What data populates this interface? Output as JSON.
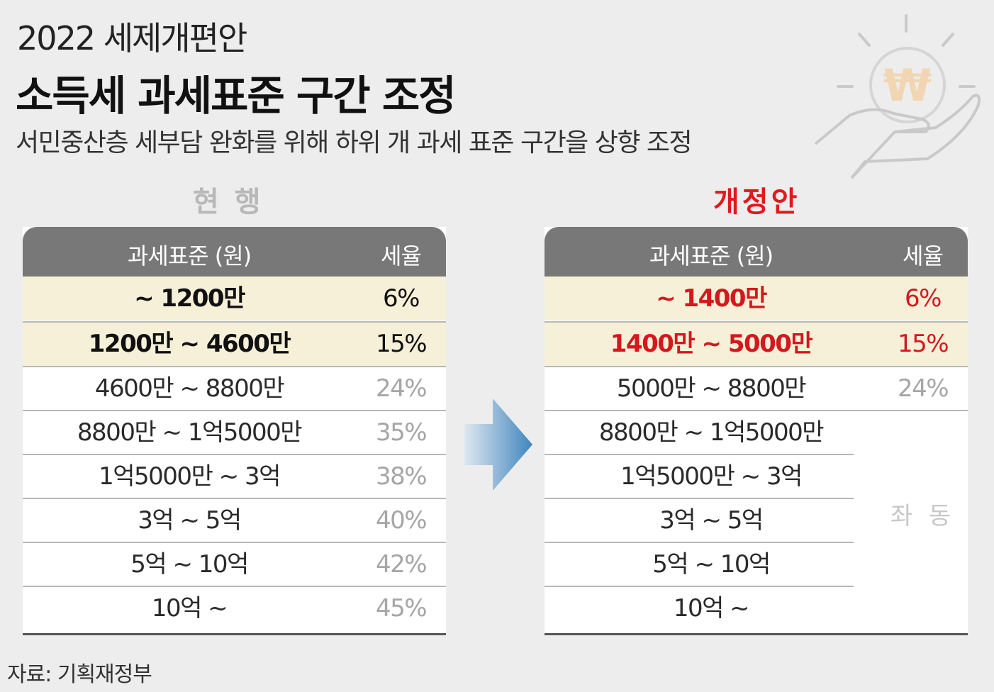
{
  "header": {
    "year_title": "2022 세제개편안",
    "main_title": "소득세 과세표준 구간 조정",
    "subtitle": "서민중산층 세부담 완화를 위해 하위 개 과세 표준 구간을 상향 조정"
  },
  "illustration": {
    "icon": "hand-holding-won-coin-icon",
    "symbol": "₩"
  },
  "colors": {
    "accent_red": "#d4181e",
    "highlight": "#f7f0d8",
    "header_gray": "#787878"
  },
  "current": {
    "label": "현 행",
    "headers": {
      "base": "과세표준 (원)",
      "rate": "세율"
    },
    "rows": [
      {
        "base": "~ 1200만",
        "rate": "6%"
      },
      {
        "base": "1200만 ~ 4600만",
        "rate": "15%"
      },
      {
        "base": "4600만 ~ 8800만",
        "rate": "24%"
      },
      {
        "base": "8800만 ~ 1억5000만",
        "rate": "35%"
      },
      {
        "base": "1억5000만 ~ 3억",
        "rate": "38%"
      },
      {
        "base": "3억 ~ 5억",
        "rate": "40%"
      },
      {
        "base": "5억 ~ 10억",
        "rate": "42%"
      },
      {
        "base": "10억 ~",
        "rate": "45%"
      }
    ]
  },
  "revised": {
    "label": "개정안",
    "headers": {
      "base": "과세표준 (원)",
      "rate": "세율"
    },
    "rows": [
      {
        "base": "~ 1400만",
        "rate": "6%"
      },
      {
        "base": "1400만 ~ 5000만",
        "rate": "15%"
      },
      {
        "base": "5000만 ~ 8800만",
        "rate": "24%"
      },
      {
        "base": "8800만 ~ 1억5000만",
        "rate": ""
      },
      {
        "base": "1억5000만 ~ 3억",
        "rate": ""
      },
      {
        "base": "3억 ~ 5억",
        "rate": ""
      },
      {
        "base": "5억 ~ 10억",
        "rate": ""
      },
      {
        "base": "10억 ~",
        "rate": ""
      }
    ],
    "same_label": "좌 동"
  },
  "source": "자료: 기획재정부"
}
